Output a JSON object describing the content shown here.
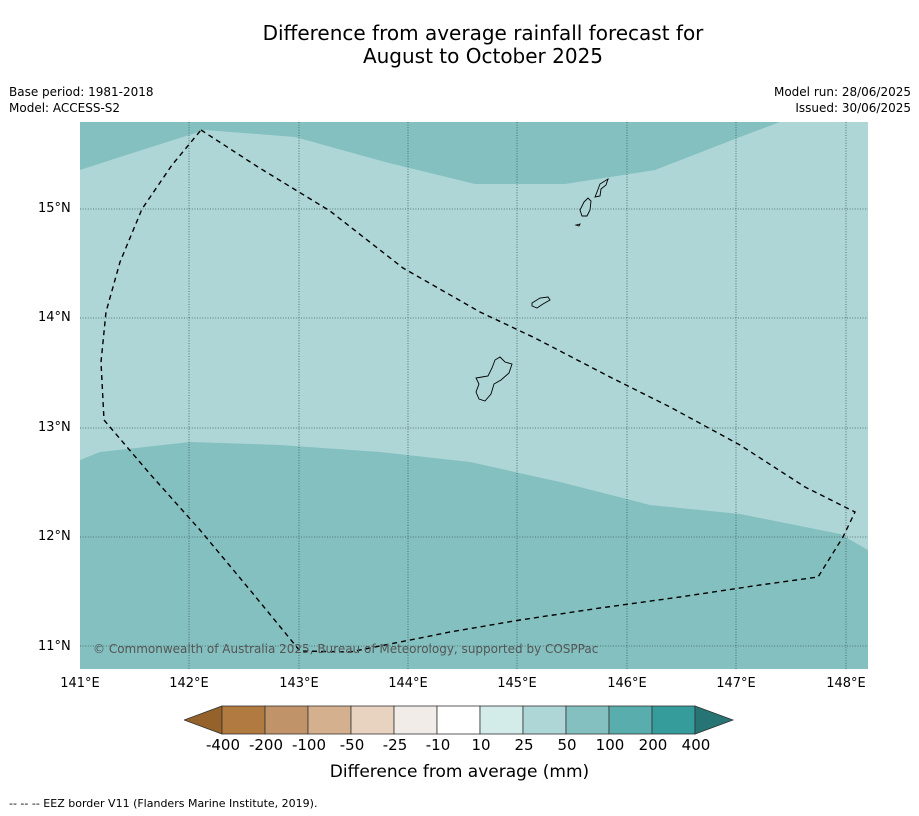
{
  "header": {
    "title_line1": "Difference from average rainfall forecast for",
    "title_line2": "August to October 2025",
    "base_period": "Base period: 1981-2018",
    "model": "Model: ACCESS-S2",
    "model_run": "Model run: 28/06/2025",
    "issued": "Issued: 30/06/2025"
  },
  "map": {
    "latitudes": [
      "15°N",
      "14°N",
      "13°N",
      "12°N",
      "11°N"
    ],
    "longitudes": [
      "141°E",
      "142°E",
      "143°E",
      "144°E",
      "145°E",
      "146°E",
      "147°E",
      "148°E"
    ],
    "copyright": "© Commonwealth of Australia 2025, Bureau of Meteorology, supported by COSPPac",
    "colors": {
      "category_25_50": "#aed6d6",
      "category_50_100": "#84c0c0",
      "eez_border": "#000000"
    }
  },
  "colorbar": {
    "labels": [
      "-400",
      "-200",
      "-100",
      "-50",
      "-25",
      "-10",
      "10",
      "25",
      "50",
      "100",
      "200",
      "400"
    ],
    "colors": [
      "#94622a",
      "#b07a40",
      "#c19368",
      "#d4b08f",
      "#e8d2c0",
      "#f1ece8",
      "#ffffff",
      "#d3ebe9",
      "#aed6d6",
      "#84c0c0",
      "#5aadad",
      "#359b9b",
      "#267474"
    ],
    "title": "Difference from average (mm)"
  },
  "footnote": "--  --  -- EEZ border V11 (Flanders Marine Institute, 2019)."
}
